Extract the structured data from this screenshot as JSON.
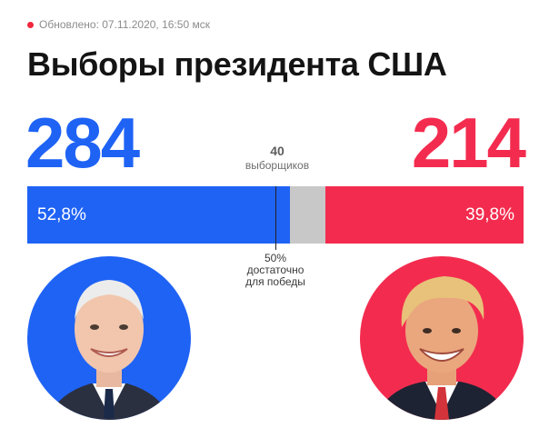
{
  "header": {
    "updated_text": "Обновлено: 07.11.2020, 16:50 мск",
    "title": "Выборы президента США"
  },
  "results": {
    "left": {
      "electors": "284",
      "percent": "52,8%",
      "color": "#1f63f5"
    },
    "right": {
      "electors": "214",
      "percent": "39,8%",
      "color": "#f32c4f"
    },
    "remaining": {
      "value": "40",
      "label": "выборщиков",
      "color": "#c8c8c8"
    },
    "threshold": {
      "value": "50%",
      "line1": "достаточно",
      "line2": "для победы"
    }
  },
  "avatars": {
    "left": {
      "icon": "candidate-portrait-icon",
      "color": "#1f63f5"
    },
    "right": {
      "icon": "candidate-portrait-icon",
      "color": "#f32c4f"
    }
  }
}
